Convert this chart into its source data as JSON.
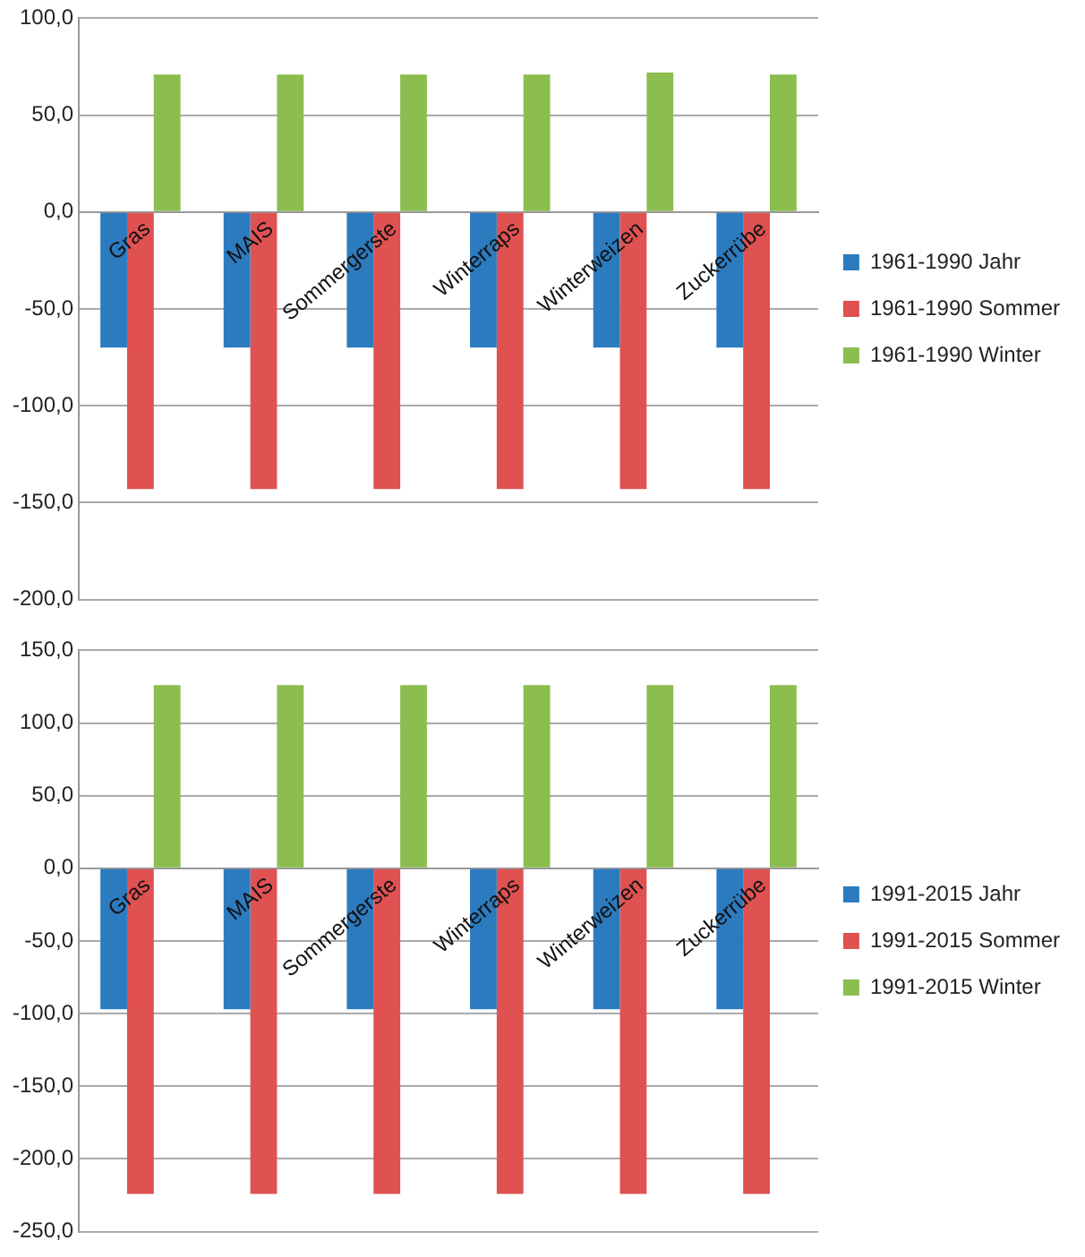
{
  "chart_data": [
    {
      "type": "bar",
      "categories": [
        "Gras",
        "MAIS",
        "Sommergerste",
        "Winterraps",
        "Winterweizen",
        "Zuckerrübe"
      ],
      "series": [
        {
          "name": "1961-1990 Jahr",
          "color": "#2c7bbf",
          "values": [
            -70,
            -70,
            -70,
            -70,
            -70,
            -70
          ]
        },
        {
          "name": "1961-1990 Sommer",
          "color": "#e05151",
          "values": [
            -143,
            -143,
            -143,
            -143,
            -143,
            -143
          ]
        },
        {
          "name": "1961-1990 Winter",
          "color": "#8cbd4f",
          "values": [
            71,
            71,
            71,
            71,
            72,
            71
          ]
        }
      ],
      "ylim": [
        -200,
        100
      ],
      "yticks": [
        {
          "value": -200,
          "label": "-200,0"
        },
        {
          "value": -150,
          "label": "-150,0"
        },
        {
          "value": -100,
          "label": "-100,0"
        },
        {
          "value": -50,
          "label": "-50,0"
        },
        {
          "value": 0,
          "label": "0,0"
        },
        {
          "value": 50,
          "label": "50,0"
        },
        {
          "value": 100,
          "label": "100,0"
        }
      ],
      "grid": "y",
      "legend": "right"
    },
    {
      "type": "bar",
      "categories": [
        "Gras",
        "MAIS",
        "Sommergerste",
        "Winterraps",
        "Winterweizen",
        "Zuckerrübe"
      ],
      "series": [
        {
          "name": "1991-2015 Jahr",
          "color": "#2c7bbf",
          "values": [
            -97,
            -97,
            -97,
            -97,
            -97,
            -97
          ]
        },
        {
          "name": "1991-2015 Sommer",
          "color": "#e05151",
          "values": [
            -224,
            -224,
            -224,
            -224,
            -224,
            -224
          ]
        },
        {
          "name": "1991-2015 Winter",
          "color": "#8cbd4f",
          "values": [
            126,
            126,
            126,
            126,
            126,
            126
          ]
        }
      ],
      "ylim": [
        -250,
        150
      ],
      "yticks": [
        {
          "value": -250,
          "label": "-250,0"
        },
        {
          "value": -200,
          "label": "-200,0"
        },
        {
          "value": -150,
          "label": "-150,0"
        },
        {
          "value": -100,
          "label": "-100,0"
        },
        {
          "value": -50,
          "label": "-50,0"
        },
        {
          "value": 0,
          "label": "0,0"
        },
        {
          "value": 50,
          "label": "50,0"
        },
        {
          "value": 100,
          "label": "100,0"
        },
        {
          "value": 150,
          "label": "150,0"
        }
      ],
      "grid": "y",
      "legend": "right"
    }
  ]
}
